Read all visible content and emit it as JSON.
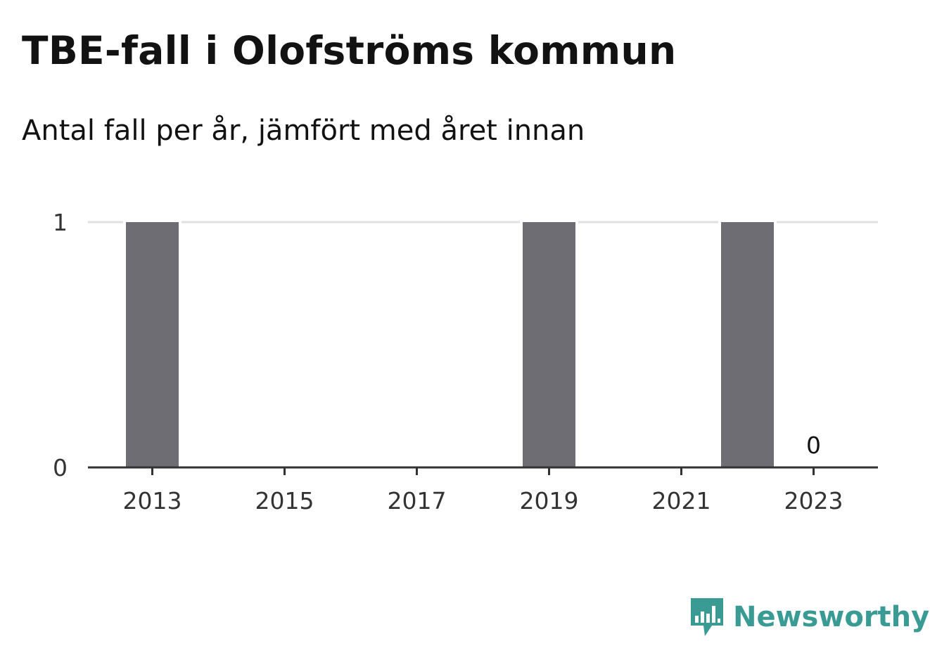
{
  "header": {
    "title": "TBE-fall i Olofströms kommun",
    "subtitle": "Antal fall per år, jämfört med året innan"
  },
  "brand": {
    "name": "Newsworthy",
    "icon": "newsworthy-logo-icon",
    "color": "#3a9b95"
  },
  "colors": {
    "bar": "#6e6d73",
    "gridline": "#e1e1e1",
    "axis": "#333333"
  },
  "chart_data": {
    "type": "bar",
    "title": "TBE-fall i Olofströms kommun",
    "subtitle": "Antal fall per år, jämfört med året innan",
    "xlabel": "",
    "ylabel": "",
    "categories": [
      "2013",
      "2014",
      "2015",
      "2016",
      "2017",
      "2018",
      "2019",
      "2020",
      "2021",
      "2022",
      "2023"
    ],
    "values": [
      1,
      0,
      0,
      0,
      0,
      0,
      1,
      0,
      0,
      1,
      0
    ],
    "ylim": [
      0,
      1
    ],
    "yticks": [
      "0",
      "1"
    ],
    "xticks": [
      "2013",
      "2015",
      "2017",
      "2019",
      "2021",
      "2023"
    ],
    "data_labels": [
      {
        "category": "2023",
        "text": "0"
      }
    ],
    "grid": true,
    "legend": "none"
  }
}
